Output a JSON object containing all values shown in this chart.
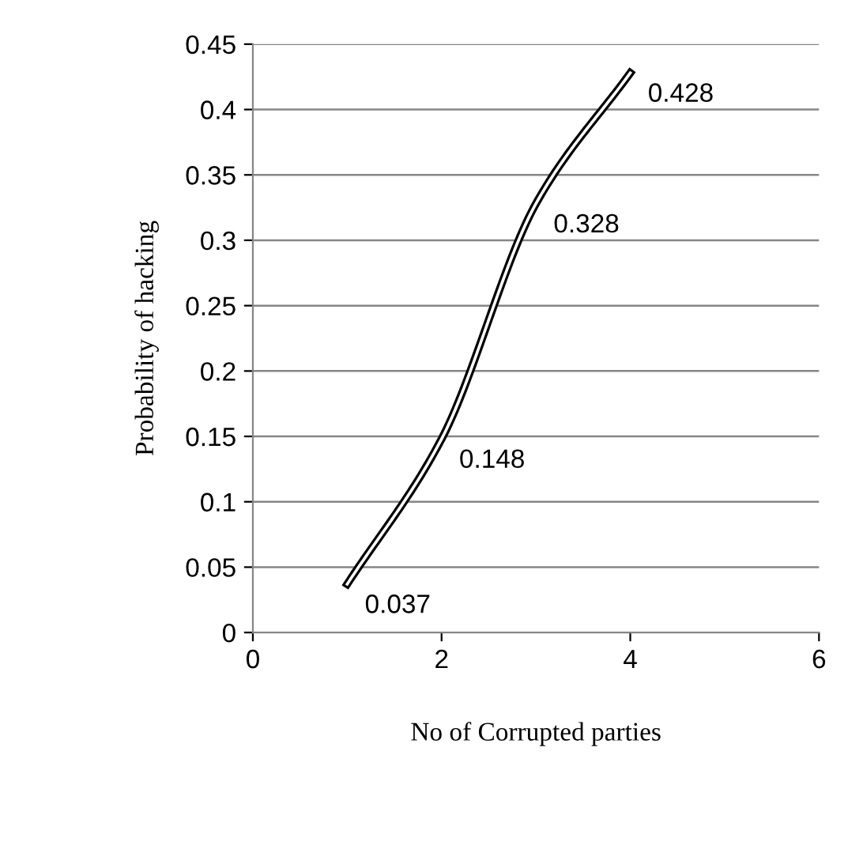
{
  "chart_data": {
    "type": "line",
    "xlabel": "No of Corrupted parties",
    "ylabel": "Probability of hacking",
    "x": [
      1,
      2,
      3,
      4
    ],
    "series": [
      {
        "color": "#000000",
        "values": [
          0.037,
          0.148,
          0.328,
          0.428
        ]
      }
    ],
    "xlim": [
      0,
      6
    ],
    "xticks": [
      0,
      2,
      4,
      6
    ],
    "ylim": [
      0,
      0.45
    ],
    "yticks": [
      0,
      0.05,
      0.1,
      0.15,
      0.2,
      0.25,
      0.3,
      0.35,
      0.4,
      0.45
    ],
    "grid": "y",
    "data_labels": true,
    "marker": "none",
    "line_style": "solid"
  }
}
